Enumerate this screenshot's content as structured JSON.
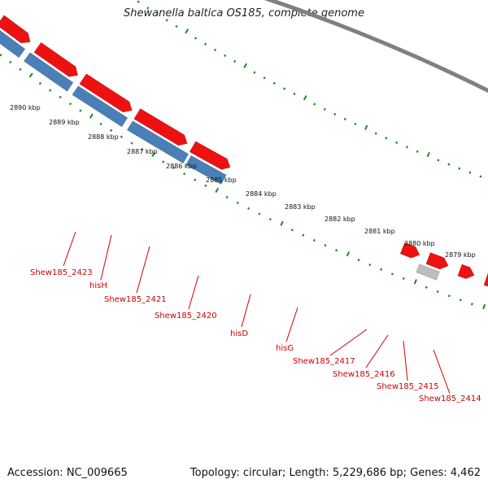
{
  "title": "Shewanella baltica OS185, complete genome",
  "footer": {
    "accession": "Accession: NC_009665",
    "summary": "Topology: circular; Length: 5,229,686 bp; Genes: 4,462"
  },
  "colors": {
    "forward_gene": "#ee1111",
    "reverse_gene": "#4a7fb8",
    "other_feature": "#bdbdbd",
    "backbone": "#808080",
    "tick": "#1a8a1a",
    "label": "#cc0000"
  },
  "scale_ticks": [
    {
      "text": "2890 kbp"
    },
    {
      "text": "2889 kbp"
    },
    {
      "text": "2888 kbp"
    },
    {
      "text": "2887 kbp"
    },
    {
      "text": "2886 kbp"
    },
    {
      "text": "2885 kbp"
    },
    {
      "text": "2884 kbp"
    },
    {
      "text": "2883 kbp"
    },
    {
      "text": "2882 kbp"
    },
    {
      "text": "2881 kbp"
    },
    {
      "text": "2880 kbp"
    },
    {
      "text": "2879 kbp"
    }
  ],
  "gene_labels": [
    {
      "text": "Shew185_2423"
    },
    {
      "text": "hisH"
    },
    {
      "text": "Shew185_2421"
    },
    {
      "text": "Shew185_2420"
    },
    {
      "text": "hisD"
    },
    {
      "text": "hisG"
    },
    {
      "text": "Shew185_2417"
    },
    {
      "text": "Shew185_2416"
    },
    {
      "text": "Shew185_2415"
    },
    {
      "text": "Shew185_2414"
    }
  ]
}
